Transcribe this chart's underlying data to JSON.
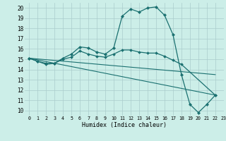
{
  "title": "",
  "xlabel": "Humidex (Indice chaleur)",
  "background_color": "#cceee8",
  "grid_color": "#aacccc",
  "line_color": "#1a7070",
  "xlim": [
    -0.5,
    23
  ],
  "ylim": [
    9.5,
    20.5
  ],
  "xticks": [
    0,
    1,
    2,
    3,
    4,
    5,
    6,
    7,
    8,
    9,
    10,
    11,
    12,
    13,
    14,
    15,
    16,
    17,
    18,
    19,
    20,
    21,
    22,
    23
  ],
  "yticks": [
    10,
    11,
    12,
    13,
    14,
    15,
    16,
    17,
    18,
    19,
    20
  ],
  "line1_x": [
    0,
    1,
    2,
    3,
    4,
    5,
    6,
    7,
    8,
    9,
    10,
    11,
    12,
    13,
    14,
    15,
    16,
    17,
    18,
    19,
    20,
    21,
    22
  ],
  "line1_y": [
    15.1,
    14.8,
    14.6,
    14.6,
    15.1,
    15.5,
    16.2,
    16.1,
    15.7,
    15.5,
    16.1,
    19.2,
    19.9,
    19.6,
    20.0,
    20.1,
    19.3,
    17.4,
    13.5,
    10.6,
    9.8,
    10.6,
    11.5
  ],
  "line2_x": [
    0,
    1,
    2,
    3,
    4,
    5,
    6,
    7,
    8,
    9,
    10,
    11,
    12,
    13,
    14,
    15,
    16,
    17,
    18,
    22
  ],
  "line2_y": [
    15.1,
    14.8,
    14.5,
    14.6,
    15.0,
    15.2,
    15.8,
    15.5,
    15.3,
    15.2,
    15.5,
    15.9,
    15.9,
    15.7,
    15.6,
    15.6,
    15.3,
    14.9,
    14.5,
    11.5
  ],
  "line3_x": [
    0,
    22
  ],
  "line3_y": [
    15.1,
    13.5
  ],
  "line4_x": [
    0,
    22
  ],
  "line4_y": [
    15.1,
    11.5
  ]
}
